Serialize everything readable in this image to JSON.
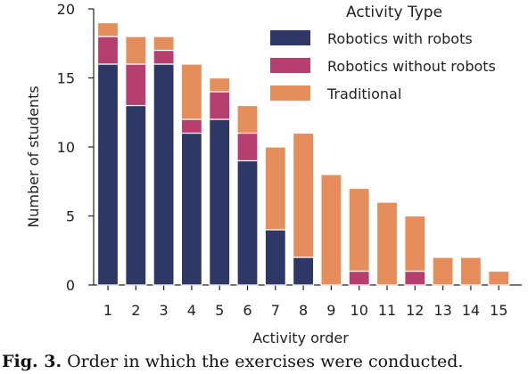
{
  "chart_data": {
    "type": "bar",
    "stacked": true,
    "categories": [
      "1",
      "2",
      "3",
      "4",
      "5",
      "6",
      "7",
      "8",
      "9",
      "10",
      "11",
      "12",
      "13",
      "14",
      "15"
    ],
    "series": [
      {
        "name": "Robotics with robots",
        "color": "#2e3765",
        "values": [
          16,
          13,
          16,
          11,
          12,
          9,
          4,
          2,
          0,
          0,
          0,
          0,
          0,
          0,
          0
        ]
      },
      {
        "name": "Robotics without robots",
        "color": "#b63f6f",
        "values": [
          2,
          3,
          1,
          1,
          2,
          2,
          0,
          0,
          0,
          1,
          0,
          1,
          0,
          0,
          0
        ]
      },
      {
        "name": "Traditional",
        "color": "#e58e5c",
        "values": [
          1,
          2,
          1,
          4,
          1,
          2,
          6,
          9,
          8,
          6,
          6,
          4,
          2,
          2,
          1
        ]
      }
    ],
    "xlabel": "Activity order",
    "ylabel": "Number of students",
    "ylim": [
      0,
      20
    ],
    "yticks": [
      0,
      5,
      10,
      15,
      20
    ],
    "legend_title": "Activity Type",
    "legend_placement": "top-right",
    "grid": false
  },
  "caption": {
    "label": "Fig. 3.",
    "text": "Order in which the exercises were conducted."
  }
}
